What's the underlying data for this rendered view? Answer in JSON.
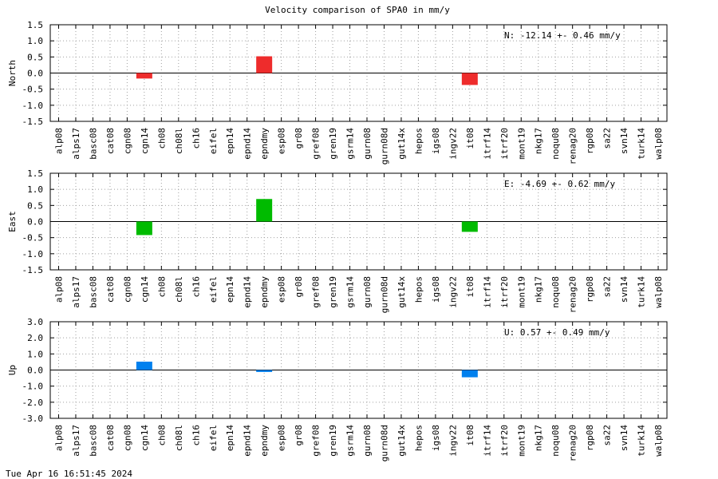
{
  "chart_data": {
    "type": "bar",
    "title": "Velocity comparison of SPA0 in mm/y",
    "timestamp": "Tue Apr 16 16:51:45 2024",
    "categories": [
      "alp08",
      "alps17",
      "basc08",
      "cat08",
      "cgn08",
      "cgn14",
      "ch08",
      "ch08l",
      "ch16",
      "eifel",
      "epn14",
      "epnd14",
      "epndmy",
      "esp08",
      "gr08",
      "gref08",
      "gren19",
      "gsrm14",
      "gurn08",
      "gurn08d",
      "gut14x",
      "hepos",
      "igs08",
      "ingv22",
      "it08",
      "itrf14",
      "itrf20",
      "mont19",
      "nkg17",
      "noqu08",
      "renag20",
      "rgp08",
      "sa22",
      "svn14",
      "turk14",
      "walp08"
    ],
    "grid": true,
    "panels": [
      {
        "ylabel": "North",
        "color": "#ee2c2c",
        "ylim": [
          -1.5,
          1.5
        ],
        "yticks": [
          "1.5",
          "1.0",
          "0.5",
          "0.0",
          "-0.5",
          "-1.0",
          "-1.5"
        ],
        "annotation": "N: -12.14 +-  0.46 mm/y",
        "bars": {
          "cgn14": -0.17,
          "epndmy": 0.52,
          "it08": -0.37
        }
      },
      {
        "ylabel": "East",
        "color": "#00bb00",
        "ylim": [
          -1.5,
          1.5
        ],
        "yticks": [
          "1.5",
          "1.0",
          "0.5",
          "0.0",
          "-0.5",
          "-1.0",
          "-1.5"
        ],
        "annotation": "E:  -4.69 +-  0.62 mm/y",
        "bars": {
          "cgn14": -0.42,
          "epndmy": 0.7,
          "it08": -0.32
        }
      },
      {
        "ylabel": "Up",
        "color": "#0080ee",
        "ylim": [
          -3.0,
          3.0
        ],
        "yticks": [
          "3.0",
          "2.0",
          "1.0",
          "0.0",
          "-1.0",
          "-2.0",
          "-3.0"
        ],
        "annotation": "U:   0.57 +-  0.49 mm/y",
        "bars": {
          "cgn14": 0.52,
          "epndmy": -0.12,
          "it08": -0.45
        }
      }
    ]
  }
}
